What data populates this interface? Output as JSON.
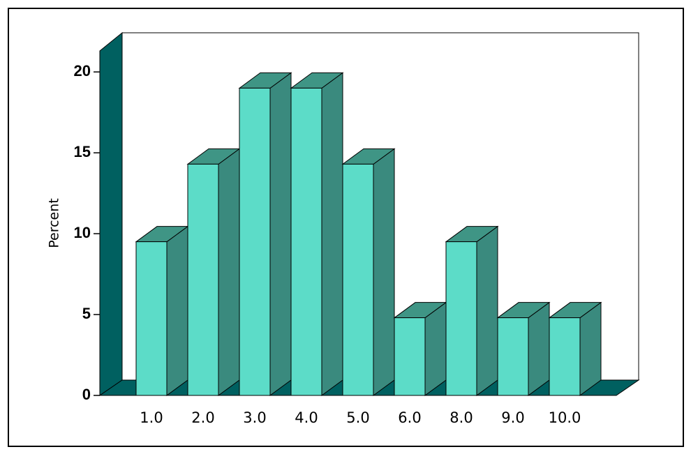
{
  "chart_data": {
    "type": "bar3d",
    "ylabel": "Percent",
    "categories": [
      "1.0",
      "2.0",
      "3.0",
      "4.0",
      "5.0",
      "6.0",
      "8.0",
      "9.0",
      "10.0"
    ],
    "values": [
      9.5,
      14.3,
      19.0,
      19.0,
      14.3,
      4.8,
      9.5,
      4.8,
      4.8
    ],
    "color": "#5cdcc8",
    "ylim": [
      0,
      21.3
    ],
    "yticks": [
      0,
      5,
      10,
      15,
      20
    ]
  }
}
